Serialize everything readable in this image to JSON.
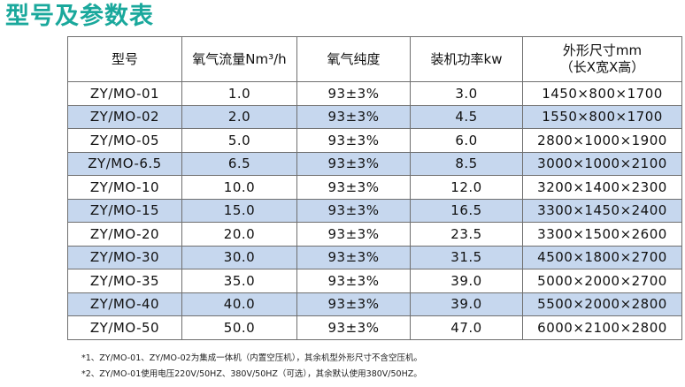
{
  "title": "型号及参数表",
  "colors": {
    "title": "#1aa89c",
    "band": "#c6d7ee",
    "border": "#6f6f6f"
  },
  "table": {
    "headers": [
      "型号",
      "氧气流量Nm³/h",
      "氧气纯度",
      "装机功率kw",
      "外形尺寸mm",
      "（长X宽X高）"
    ],
    "rows": [
      [
        "ZY/MO-01",
        "1.0",
        "93±3%",
        "3.0",
        "1450×800×1700"
      ],
      [
        "ZY/MO-02",
        "2.0",
        "93±3%",
        "4.5",
        "1550×800×1700"
      ],
      [
        "ZY/MO-05",
        "5.0",
        "93±3%",
        "6.0",
        "2800×1000×1900"
      ],
      [
        "ZY/MO-6.5",
        "6.5",
        "93±3%",
        "8.5",
        "3000×1000×2100"
      ],
      [
        "ZY/MO-10",
        "10.0",
        "93±3%",
        "12.0",
        "3200×1400×2300"
      ],
      [
        "ZY/MO-15",
        "15.0",
        "93±3%",
        "16.5",
        "3300×1450×2400"
      ],
      [
        "ZY/MO-20",
        "20.0",
        "93±3%",
        "23.5",
        "3300×1500×2600"
      ],
      [
        "ZY/MO-30",
        "30.0",
        "93±3%",
        "31.5",
        "4500×1800×2700"
      ],
      [
        "ZY/MO-35",
        "35.0",
        "93±3%",
        "39.0",
        "5000×2000×2700"
      ],
      [
        "ZY/MO-40",
        "40.0",
        "93±3%",
        "39.0",
        "5500×2000×2800"
      ],
      [
        "ZY/MO-50",
        "50.0",
        "93±3%",
        "47.0",
        "6000×2100×2800"
      ]
    ]
  },
  "notes": [
    "*1、ZY/MO-01、ZY/MO-02为集成一体机（内置空压机），其余机型外形尺寸不含空压机。",
    "*2、ZY/MO-01使用电压220V/50HZ、380V/50HZ（可选），其余默认使用380V/50HZ。"
  ]
}
